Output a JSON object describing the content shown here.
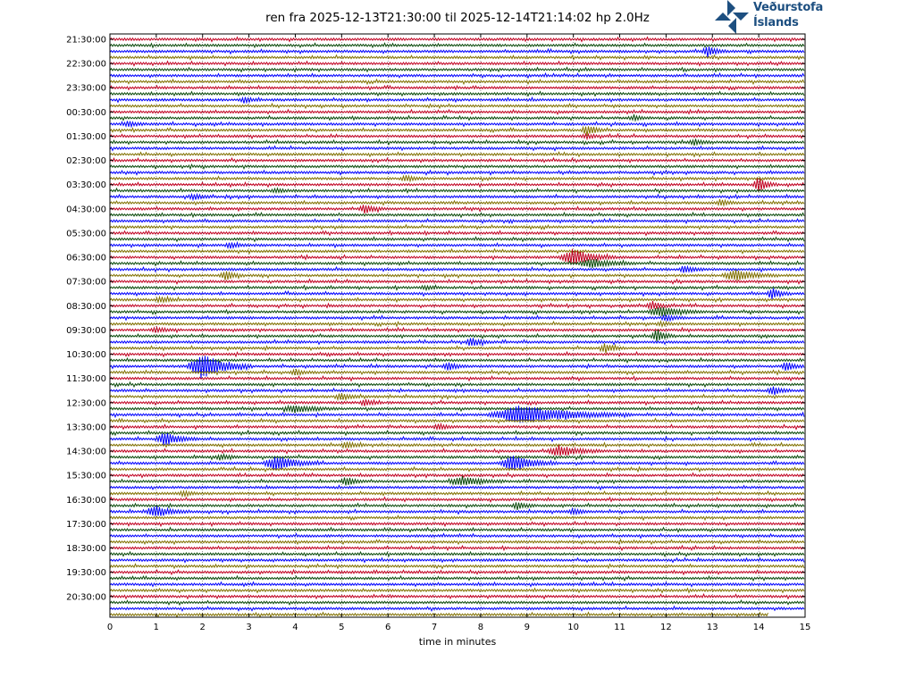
{
  "header": {
    "title": "ren fra 2025-12-13T21:30:00 til 2025-12-14T21:14:02 hp 2.0Hz"
  },
  "logo": {
    "line1": "Veðurstofa",
    "line2": "Íslands",
    "color": "#1d4f80"
  },
  "chart_data": {
    "type": "line",
    "title": "ren fra 2025-12-13T21:30:00 til 2025-12-14T21:14:02 hp 2.0Hz",
    "xlabel": "time in minutes",
    "xlim": [
      0,
      15
    ],
    "x_ticks": [
      "0",
      "1",
      "2",
      "3",
      "4",
      "5",
      "6",
      "7",
      "8",
      "9",
      "10",
      "11",
      "12",
      "13",
      "14",
      "15"
    ],
    "y_tick_labels": [
      "21:30:00",
      "22:30:00",
      "23:30:00",
      "00:30:00",
      "01:30:00",
      "02:30:00",
      "03:30:00",
      "04:30:00",
      "05:30:00",
      "06:30:00",
      "07:30:00",
      "08:30:00",
      "09:30:00",
      "10:30:00",
      "11:30:00",
      "12:30:00",
      "13:30:00",
      "14:30:00",
      "15:30:00",
      "16:30:00",
      "17:30:00",
      "18:30:00",
      "19:30:00",
      "20:30:00"
    ],
    "traces_per_label": 4,
    "trace_colors": [
      "#c00020",
      "#0a4a0a",
      "#0000ff",
      "#807000"
    ],
    "last_trace_end_minute": 14.2,
    "events": [
      {
        "trace": 2,
        "minute": 12.9,
        "amp": 6
      },
      {
        "trace": 10,
        "minute": 2.9,
        "amp": 3
      },
      {
        "trace": 13,
        "minute": 11.3,
        "amp": 2
      },
      {
        "trace": 14,
        "minute": 0.4,
        "amp": 3
      },
      {
        "trace": 15,
        "minute": 10.3,
        "amp": 6
      },
      {
        "trace": 16,
        "minute": 10.3,
        "amp": 2
      },
      {
        "trace": 17,
        "minute": 12.6,
        "amp": 3
      },
      {
        "trace": 23,
        "minute": 6.4,
        "amp": 3
      },
      {
        "trace": 24,
        "minute": 14.0,
        "amp": 8
      },
      {
        "trace": 25,
        "minute": 3.6,
        "amp": 2
      },
      {
        "trace": 26,
        "minute": 1.8,
        "amp": 3
      },
      {
        "trace": 27,
        "minute": 13.2,
        "amp": 3
      },
      {
        "trace": 28,
        "minute": 5.5,
        "amp": 5
      },
      {
        "trace": 34,
        "minute": 2.6,
        "amp": 3
      },
      {
        "trace": 36,
        "minute": 10.0,
        "amp": 9,
        "width": 0.8
      },
      {
        "trace": 37,
        "minute": 10.4,
        "amp": 5,
        "width": 0.8
      },
      {
        "trace": 38,
        "minute": 12.4,
        "amp": 4
      },
      {
        "trace": 39,
        "minute": 2.5,
        "amp": 5
      },
      {
        "trace": 39,
        "minute": 13.5,
        "amp": 6,
        "width": 0.8
      },
      {
        "trace": 41,
        "minute": 6.8,
        "amp": 2
      },
      {
        "trace": 42,
        "minute": 14.3,
        "amp": 6
      },
      {
        "trace": 43,
        "minute": 1.1,
        "amp": 3
      },
      {
        "trace": 44,
        "minute": 11.7,
        "amp": 5
      },
      {
        "trace": 45,
        "minute": 11.9,
        "amp": 5,
        "width": 0.8
      },
      {
        "trace": 46,
        "minute": 12.0,
        "amp": 3
      },
      {
        "trace": 47,
        "minute": 11.9,
        "amp": 2
      },
      {
        "trace": 48,
        "minute": 1.0,
        "amp": 3
      },
      {
        "trace": 49,
        "minute": 11.8,
        "amp": 7
      },
      {
        "trace": 50,
        "minute": 7.8,
        "amp": 5
      },
      {
        "trace": 51,
        "minute": 10.7,
        "amp": 5
      },
      {
        "trace": 54,
        "minute": 2.0,
        "amp": 14,
        "width": 0.9
      },
      {
        "trace": 54,
        "minute": 7.3,
        "amp": 5
      },
      {
        "trace": 54,
        "minute": 14.6,
        "amp": 5
      },
      {
        "trace": 55,
        "minute": 4.0,
        "amp": 3
      },
      {
        "trace": 58,
        "minute": 14.3,
        "amp": 5
      },
      {
        "trace": 59,
        "minute": 5.0,
        "amp": 4
      },
      {
        "trace": 60,
        "minute": 5.5,
        "amp": 3
      },
      {
        "trace": 61,
        "minute": 4.0,
        "amp": 4,
        "width": 0.8
      },
      {
        "trace": 62,
        "minute": 8.9,
        "amp": 10,
        "width": 2.0
      },
      {
        "trace": 64,
        "minute": 7.1,
        "amp": 3
      },
      {
        "trace": 66,
        "minute": 1.2,
        "amp": 7,
        "width": 0.6
      },
      {
        "trace": 67,
        "minute": 5.1,
        "amp": 4
      },
      {
        "trace": 68,
        "minute": 9.7,
        "amp": 6,
        "width": 0.8
      },
      {
        "trace": 69,
        "minute": 2.4,
        "amp": 3
      },
      {
        "trace": 70,
        "minute": 3.6,
        "amp": 8,
        "width": 0.8
      },
      {
        "trace": 70,
        "minute": 8.7,
        "amp": 8,
        "width": 0.8
      },
      {
        "trace": 73,
        "minute": 5.1,
        "amp": 5
      },
      {
        "trace": 73,
        "minute": 7.6,
        "amp": 5,
        "width": 0.8
      },
      {
        "trace": 75,
        "minute": 1.6,
        "amp": 3
      },
      {
        "trace": 77,
        "minute": 8.8,
        "amp": 4
      },
      {
        "trace": 78,
        "minute": 1.0,
        "amp": 6,
        "width": 0.6
      },
      {
        "trace": 78,
        "minute": 10.0,
        "amp": 3
      }
    ]
  }
}
